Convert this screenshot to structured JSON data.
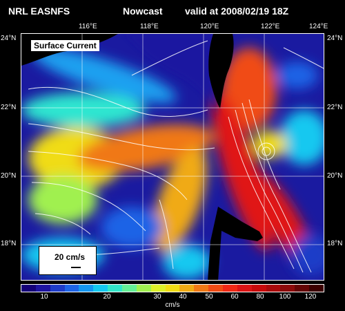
{
  "header": {
    "org": "NRL EASNFS",
    "product": "Nowcast",
    "valid": "valid at 2008/02/19 18Z"
  },
  "map": {
    "lon_labels": [
      "116°E",
      "118°E",
      "120°E",
      "122°E",
      "124°E"
    ],
    "lat_labels_left": [
      "24°N",
      "22°N",
      "20°N",
      "18°N"
    ],
    "lat_labels_right": [
      "24°N",
      "22°N",
      "20°N",
      "18°N"
    ],
    "title_box": "Surface Current",
    "ref_vector_label": "20 cm/s",
    "colors": {
      "land": "#000000",
      "ocean_low": "#1a1aa0",
      "ocean_high": "#e01010",
      "frame": "#ffffff"
    }
  },
  "colorbar": {
    "labels": [
      "10",
      "20",
      "30",
      "40",
      "50",
      "60",
      "80",
      "100",
      "120"
    ],
    "units": "cm/s",
    "colors": [
      "#140078",
      "#1e14a0",
      "#1e3cc8",
      "#1e64e6",
      "#1496f0",
      "#14c8f0",
      "#32e6c8",
      "#64f096",
      "#a0f050",
      "#dcf028",
      "#f0dc14",
      "#f0aa14",
      "#f07814",
      "#f04b14",
      "#f02814",
      "#dc1414",
      "#c80a0a",
      "#aa0a0a",
      "#8c0a0a",
      "#640505",
      "#3c0000"
    ]
  }
}
